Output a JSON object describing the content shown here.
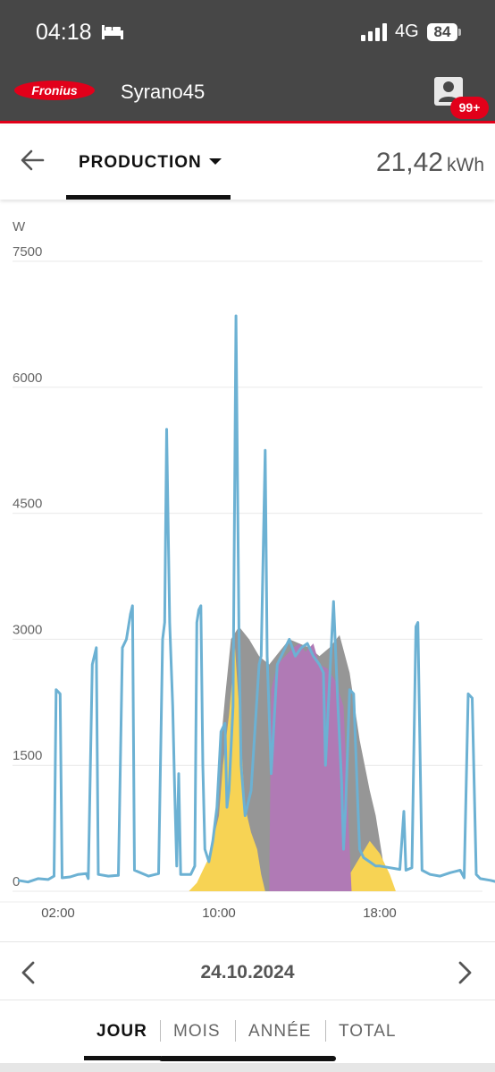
{
  "status_bar": {
    "time": "04:18",
    "network": "4G",
    "battery": "84"
  },
  "app_bar": {
    "logo_text": "Fronius",
    "site_name": "Syrano45",
    "notification_badge": "99+"
  },
  "toolbar": {
    "view_label": "PRODUCTION",
    "energy_value": "21,42",
    "energy_unit": "kWh"
  },
  "date_nav": {
    "date": "24.10.2024"
  },
  "periods": [
    {
      "label": "JOUR",
      "active": true
    },
    {
      "label": "MOIS",
      "active": false
    },
    {
      "label": "ANNÉE",
      "active": false
    },
    {
      "label": "TOTAL",
      "active": false
    }
  ],
  "colors": {
    "brand_red": "#e2001a",
    "header_bg": "#474747",
    "production": "#f7d354",
    "self_consumption": "#969696",
    "battery": "#b07ab5",
    "line": "#6cb1d3"
  },
  "chart_data": {
    "type": "area",
    "ylabel": "W",
    "ylim": [
      0,
      7500
    ],
    "yticks": [
      "0",
      "1500",
      "3000",
      "4500",
      "6000",
      "7500"
    ],
    "xlim": [
      0,
      24
    ],
    "xticks": [
      {
        "value": 2,
        "label": "02:00"
      },
      {
        "value": 10,
        "label": "10:00"
      },
      {
        "value": 18,
        "label": "18:00"
      }
    ],
    "series": [
      {
        "kind": "area",
        "color": "#969696",
        "points": [
          [
            9.3,
            0
          ],
          [
            9.7,
            500
          ],
          [
            10,
            1500
          ],
          [
            10.3,
            2300
          ],
          [
            10.6,
            3000
          ],
          [
            11,
            3150
          ],
          [
            11.5,
            3000
          ],
          [
            12,
            2800
          ],
          [
            12.5,
            2700
          ],
          [
            13,
            2850
          ],
          [
            13.5,
            3000
          ],
          [
            14,
            2950
          ],
          [
            14.5,
            2900
          ],
          [
            15,
            2800
          ],
          [
            15.5,
            2900
          ],
          [
            16,
            3050
          ],
          [
            16.5,
            2600
          ],
          [
            17,
            1800
          ],
          [
            17.5,
            1200
          ],
          [
            17.8,
            900
          ],
          [
            18.2,
            300
          ],
          [
            18.6,
            0
          ]
        ]
      },
      {
        "kind": "area",
        "color": "#f7d354",
        "points": [
          [
            8.5,
            0
          ],
          [
            8.9,
            100
          ],
          [
            9.2,
            250
          ],
          [
            9.5,
            400
          ],
          [
            9.7,
            600
          ],
          [
            10,
            900
          ],
          [
            10.2,
            1500
          ],
          [
            10.5,
            2100
          ],
          [
            10.8,
            2900
          ],
          [
            11,
            2200
          ],
          [
            11.3,
            1000
          ],
          [
            11.6,
            700
          ],
          [
            11.9,
            500
          ],
          [
            12.1,
            200
          ],
          [
            12.3,
            0
          ],
          [
            12.8,
            0
          ],
          [
            13,
            900
          ],
          [
            13.2,
            0
          ],
          [
            14,
            80
          ],
          [
            14.5,
            0
          ],
          [
            15,
            100
          ],
          [
            15.5,
            0
          ],
          [
            16,
            50
          ],
          [
            16.5,
            200
          ],
          [
            17,
            400
          ],
          [
            17.5,
            600
          ],
          [
            18,
            450
          ],
          [
            18.5,
            200
          ],
          [
            18.8,
            0
          ]
        ]
      },
      {
        "kind": "area",
        "color": "#b07ab5",
        "points": [
          [
            12.5,
            0
          ],
          [
            12.6,
            2400
          ],
          [
            12.9,
            2700
          ],
          [
            13.3,
            2800
          ],
          [
            13.7,
            2900
          ],
          [
            14,
            2950
          ],
          [
            14.3,
            2850
          ],
          [
            14.7,
            2950
          ],
          [
            15,
            2700
          ],
          [
            15.4,
            2650
          ],
          [
            15.8,
            2500
          ],
          [
            16.2,
            2200
          ],
          [
            16.5,
            500
          ],
          [
            16.6,
            0
          ]
        ]
      },
      {
        "kind": "line",
        "color": "#6cb1d3",
        "points": [
          [
            0,
            130
          ],
          [
            0.5,
            110
          ],
          [
            1,
            150
          ],
          [
            1.5,
            140
          ],
          [
            1.8,
            180
          ],
          [
            1.9,
            2400
          ],
          [
            2.1,
            2350
          ],
          [
            2.2,
            160
          ],
          [
            2.6,
            170
          ],
          [
            3,
            200
          ],
          [
            3.4,
            210
          ],
          [
            3.5,
            150
          ],
          [
            3.7,
            2700
          ],
          [
            3.9,
            2900
          ],
          [
            4,
            200
          ],
          [
            4.5,
            180
          ],
          [
            5,
            190
          ],
          [
            5.2,
            2900
          ],
          [
            5.4,
            3000
          ],
          [
            5.6,
            3300
          ],
          [
            5.7,
            3400
          ],
          [
            5.8,
            250
          ],
          [
            6.5,
            180
          ],
          [
            7,
            210
          ],
          [
            7.2,
            3000
          ],
          [
            7.3,
            3200
          ],
          [
            7.4,
            5500
          ],
          [
            7.55,
            3200
          ],
          [
            7.7,
            2200
          ],
          [
            7.8,
            1200
          ],
          [
            7.9,
            300
          ],
          [
            8,
            1400
          ],
          [
            8.1,
            200
          ],
          [
            8.6,
            200
          ],
          [
            8.8,
            300
          ],
          [
            8.9,
            3200
          ],
          [
            9,
            3350
          ],
          [
            9.1,
            3400
          ],
          [
            9.2,
            1500
          ],
          [
            9.3,
            500
          ],
          [
            9.5,
            350
          ],
          [
            9.7,
            600
          ],
          [
            9.9,
            1000
          ],
          [
            10.1,
            1900
          ],
          [
            10.3,
            2000
          ],
          [
            10.4,
            1000
          ],
          [
            10.5,
            1200
          ],
          [
            10.7,
            2200
          ],
          [
            10.85,
            6850
          ],
          [
            11,
            3000
          ],
          [
            11.1,
            1500
          ],
          [
            11.3,
            900
          ],
          [
            11.6,
            1200
          ],
          [
            12,
            2700
          ],
          [
            12.1,
            2800
          ],
          [
            12.3,
            5250
          ],
          [
            12.4,
            2800
          ],
          [
            12.6,
            1400
          ],
          [
            12.9,
            2700
          ],
          [
            13.2,
            2850
          ],
          [
            13.5,
            3000
          ],
          [
            13.8,
            2800
          ],
          [
            14.1,
            2900
          ],
          [
            14.4,
            2950
          ],
          [
            14.7,
            2800
          ],
          [
            15,
            2700
          ],
          [
            15.2,
            2600
          ],
          [
            15.3,
            1500
          ],
          [
            15.5,
            2500
          ],
          [
            15.7,
            3450
          ],
          [
            15.9,
            2300
          ],
          [
            16.1,
            1300
          ],
          [
            16.2,
            500
          ],
          [
            16.3,
            1000
          ],
          [
            16.5,
            2400
          ],
          [
            16.7,
            2350
          ],
          [
            16.9,
            1100
          ],
          [
            17,
            500
          ],
          [
            17.2,
            400
          ],
          [
            17.5,
            350
          ],
          [
            17.8,
            300
          ],
          [
            18,
            300
          ],
          [
            18.5,
            280
          ],
          [
            19,
            260
          ],
          [
            19.2,
            950
          ],
          [
            19.3,
            250
          ],
          [
            19.6,
            280
          ],
          [
            19.8,
            3150
          ],
          [
            19.9,
            3200
          ],
          [
            20.1,
            250
          ],
          [
            20.5,
            200
          ],
          [
            21,
            180
          ],
          [
            21.5,
            220
          ],
          [
            22,
            250
          ],
          [
            22.2,
            160
          ],
          [
            22.4,
            2350
          ],
          [
            22.6,
            2300
          ],
          [
            22.8,
            200
          ],
          [
            23,
            150
          ],
          [
            23.5,
            130
          ],
          [
            24,
            100
          ]
        ]
      }
    ]
  }
}
